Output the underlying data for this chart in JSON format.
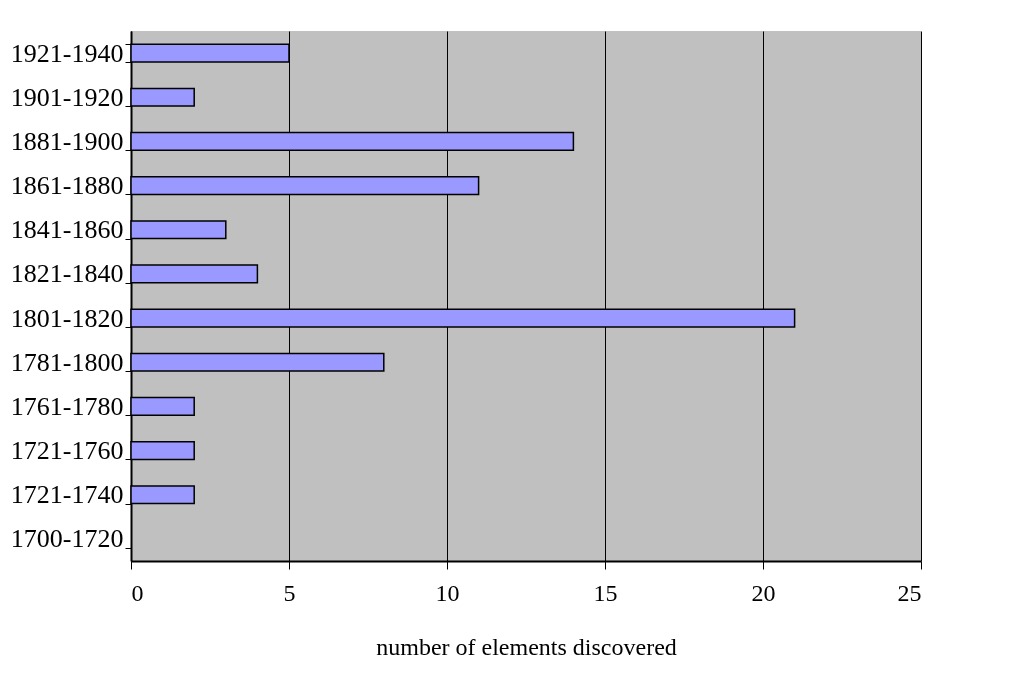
{
  "chart_data": {
    "type": "bar",
    "orientation": "horizontal",
    "categories": [
      "1921-1940",
      "1901-1920",
      "1881-1900",
      "1861-1880",
      "1841-1860",
      "1821-1840",
      "1801-1820",
      "1781-1800",
      "1761-1780",
      "1721-1760",
      "1721-1740",
      "1700-1720"
    ],
    "values": [
      5,
      2,
      14,
      11,
      3,
      4,
      21,
      8,
      2,
      2,
      2,
      0
    ],
    "color": "#9999ff",
    "xlim": [
      0,
      25
    ],
    "xticks": [
      0,
      5,
      10,
      15,
      20,
      25
    ],
    "xlabel": "number of elements discovered",
    "grid": "x"
  }
}
